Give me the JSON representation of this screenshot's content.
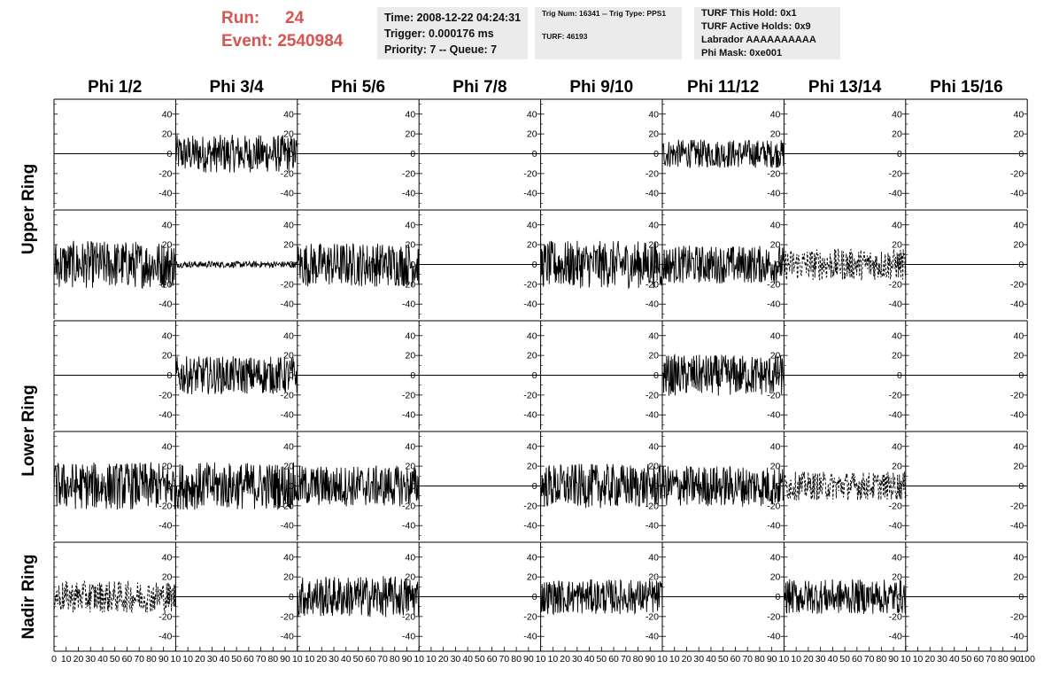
{
  "header": {
    "run_label": "Run:",
    "run_value": "24",
    "event_label": "Event:",
    "event_value": "2540984"
  },
  "time_box": {
    "time": "Time: 2008-12-22 04:24:31",
    "trigger": "Trigger: 0.000176 ms",
    "priority": "Priority: 7 -- Queue: 7"
  },
  "trig_box": {
    "trig": "Trig Num: 16341 -- Trig Type: PPS1",
    "turf": "TURF: 46193"
  },
  "turf_box": {
    "this_hold": "TURF This Hold: 0x1",
    "active_holds": "TURF Active Holds: 0x9",
    "labrador": "Labrador AAAAAAAAAA",
    "phi_mask": "Phi Mask: 0xe001"
  },
  "chart_data": {
    "type": "line",
    "columns": [
      "Phi 1/2",
      "Phi 3/4",
      "Phi 5/6",
      "Phi 7/8",
      "Phi 9/10",
      "Phi 11/12",
      "Phi 13/14",
      "Phi 15/16"
    ],
    "row_groups": [
      {
        "label": "Upper Ring",
        "rows": [
          0,
          1
        ]
      },
      {
        "label": "Lower Ring",
        "rows": [
          2,
          3
        ]
      },
      {
        "label": "Nadir Ring",
        "rows": [
          4
        ]
      }
    ],
    "xlim": [
      0,
      100
    ],
    "ylim": [
      -55,
      55
    ],
    "x_ticks": [
      0,
      10,
      20,
      30,
      40,
      50,
      60,
      70,
      80,
      90,
      100
    ],
    "x_tick_labels_shown": [
      "0",
      "10",
      "20",
      "30",
      "40",
      "50",
      "60",
      "70",
      "80",
      "90",
      "10"
    ],
    "x_tick_labels_last_column": [
      "0",
      "10",
      "20",
      "30",
      "40",
      "50",
      "60",
      "70",
      "80",
      "90",
      "100"
    ],
    "y_ticks": [
      -40,
      -20,
      0,
      20,
      40
    ],
    "y_tick_labels": [
      "-40",
      "-20",
      "0",
      "20",
      "40"
    ],
    "grid": false,
    "colors": {
      "trace": "#000000",
      "text": "#000000",
      "run_text": "#d9534f",
      "info_bg": "#ebebeb"
    },
    "panels": [
      [
        {
          "state": "flat",
          "amp": 0
        },
        {
          "state": "active",
          "amp": 12,
          "style": "solid"
        },
        {
          "state": "flat",
          "amp": 0
        },
        {
          "state": "flat",
          "amp": 0
        },
        {
          "state": "flat",
          "amp": 0
        },
        {
          "state": "active",
          "amp": 9,
          "style": "solid"
        },
        {
          "state": "flat",
          "amp": 0
        },
        {
          "state": "flat",
          "amp": 0
        }
      ],
      [
        {
          "state": "active",
          "amp": 15,
          "style": "solid"
        },
        {
          "state": "active",
          "amp": 2,
          "style": "solid"
        },
        {
          "state": "active",
          "amp": 14,
          "style": "solid"
        },
        {
          "state": "flat",
          "amp": 0
        },
        {
          "state": "active",
          "amp": 15,
          "style": "solid"
        },
        {
          "state": "active",
          "amp": 12,
          "style": "solid"
        },
        {
          "state": "active",
          "amp": 10,
          "style": "dashed"
        },
        {
          "state": "flat",
          "amp": 0
        }
      ],
      [
        {
          "state": "flat",
          "amp": 0
        },
        {
          "state": "active",
          "amp": 12,
          "style": "solid"
        },
        {
          "state": "flat",
          "amp": 0
        },
        {
          "state": "flat",
          "amp": 0
        },
        {
          "state": "flat",
          "amp": 0
        },
        {
          "state": "active",
          "amp": 13,
          "style": "solid"
        },
        {
          "state": "flat",
          "amp": 0
        },
        {
          "state": "flat",
          "amp": 0
        }
      ],
      [
        {
          "state": "active",
          "amp": 15,
          "style": "solid"
        },
        {
          "state": "active",
          "amp": 15,
          "style": "solid"
        },
        {
          "state": "active",
          "amp": 13,
          "style": "solid"
        },
        {
          "state": "flat",
          "amp": 0
        },
        {
          "state": "active",
          "amp": 14,
          "style": "solid"
        },
        {
          "state": "active",
          "amp": 13,
          "style": "solid"
        },
        {
          "state": "active",
          "amp": 9,
          "style": "dashed"
        },
        {
          "state": "flat",
          "amp": 0
        }
      ],
      [
        {
          "state": "active",
          "amp": 10,
          "style": "dashed"
        },
        {
          "state": "flat",
          "amp": 0
        },
        {
          "state": "active",
          "amp": 13,
          "style": "solid"
        },
        {
          "state": "flat",
          "amp": 0
        },
        {
          "state": "active",
          "amp": 11,
          "style": "solid"
        },
        {
          "state": "flat",
          "amp": 0
        },
        {
          "state": "active",
          "amp": 11,
          "style": "solid"
        },
        {
          "state": "flat",
          "amp": 0
        }
      ]
    ]
  }
}
